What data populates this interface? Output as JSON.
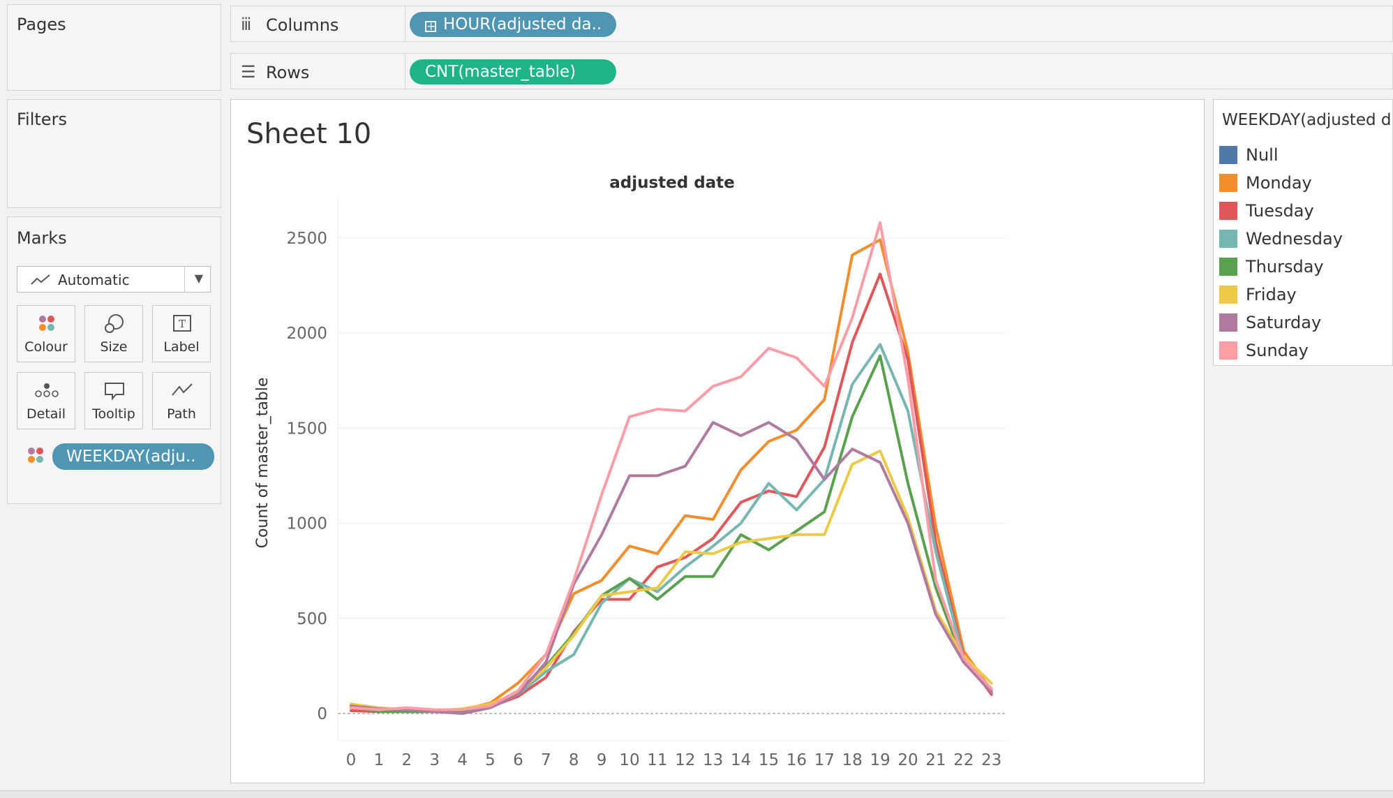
{
  "sidebar": {
    "pages_title": "Pages",
    "filters_title": "Filters",
    "marks_title": "Marks",
    "mark_type": "Automatic",
    "mark_buttons": [
      "Colour",
      "Size",
      "Label",
      "Detail",
      "Tooltip",
      "Path"
    ],
    "color_pill": "WEEKDAY(adju.."
  },
  "shelves": {
    "columns_label": "Columns",
    "columns_pill": "HOUR(adjusted da..",
    "rows_label": "Rows",
    "rows_pill": "CNT(master_table)"
  },
  "sheet": {
    "title": "Sheet 10"
  },
  "legend": {
    "title": "WEEKDAY(adjusted da",
    "items": [
      {
        "name": "Null",
        "color": "#4e79a7"
      },
      {
        "name": "Monday",
        "color": "#f28e2b"
      },
      {
        "name": "Tuesday",
        "color": "#e15759"
      },
      {
        "name": "Wednesday",
        "color": "#76b7b2"
      },
      {
        "name": "Thursday",
        "color": "#59a14f"
      },
      {
        "name": "Friday",
        "color": "#edc948"
      },
      {
        "name": "Saturday",
        "color": "#b07aa1"
      },
      {
        "name": "Sunday",
        "color": "#ff9da7"
      }
    ]
  },
  "chart_data": {
    "type": "line",
    "title": "adjusted date",
    "xlabel": "",
    "ylabel": "Count of master_table",
    "x": [
      0,
      1,
      2,
      3,
      4,
      5,
      6,
      7,
      8,
      9,
      10,
      11,
      12,
      13,
      14,
      15,
      16,
      17,
      18,
      19,
      20,
      21,
      22,
      23
    ],
    "ylim": [
      0,
      2700
    ],
    "yticks": [
      0,
      500,
      1000,
      1500,
      2000,
      2500
    ],
    "grid": true,
    "series": [
      {
        "name": "Monday",
        "color": "#f28e2b",
        "values": [
          30,
          20,
          20,
          15,
          20,
          55,
          160,
          310,
          630,
          700,
          880,
          840,
          1040,
          1020,
          1280,
          1430,
          1490,
          1650,
          2410,
          2490,
          1900,
          980,
          330,
          120
        ]
      },
      {
        "name": "Tuesday",
        "color": "#e15759",
        "values": [
          15,
          10,
          15,
          10,
          20,
          35,
          90,
          190,
          430,
          600,
          600,
          770,
          820,
          920,
          1110,
          1170,
          1140,
          1400,
          1950,
          2310,
          1860,
          900,
          300,
          100
        ]
      },
      {
        "name": "Wednesday",
        "color": "#76b7b2",
        "values": [
          40,
          15,
          10,
          10,
          20,
          40,
          100,
          220,
          310,
          580,
          710,
          640,
          770,
          880,
          1000,
          1210,
          1070,
          1230,
          1730,
          1940,
          1590,
          850,
          290,
          110
        ]
      },
      {
        "name": "Thursday",
        "color": "#59a14f",
        "values": [
          35,
          10,
          10,
          10,
          15,
          35,
          120,
          250,
          420,
          620,
          710,
          600,
          720,
          720,
          940,
          860,
          960,
          1060,
          1560,
          1880,
          1210,
          660,
          270,
          130
        ]
      },
      {
        "name": "Friday",
        "color": "#edc948",
        "values": [
          50,
          30,
          20,
          15,
          25,
          50,
          110,
          240,
          410,
          620,
          640,
          660,
          850,
          840,
          900,
          920,
          940,
          940,
          1310,
          1380,
          1030,
          540,
          300,
          160
        ]
      },
      {
        "name": "Saturday",
        "color": "#b07aa1",
        "values": [
          40,
          25,
          20,
          10,
          0,
          30,
          100,
          270,
          680,
          940,
          1250,
          1250,
          1300,
          1530,
          1460,
          1530,
          1440,
          1230,
          1390,
          1320,
          1000,
          520,
          270,
          110
        ]
      },
      {
        "name": "Sunday",
        "color": "#ff9da7",
        "values": [
          30,
          20,
          30,
          20,
          20,
          40,
          120,
          310,
          700,
          1150,
          1560,
          1600,
          1590,
          1720,
          1770,
          1920,
          1870,
          1720,
          2080,
          2580,
          1760,
          700,
          290,
          130
        ]
      }
    ]
  }
}
